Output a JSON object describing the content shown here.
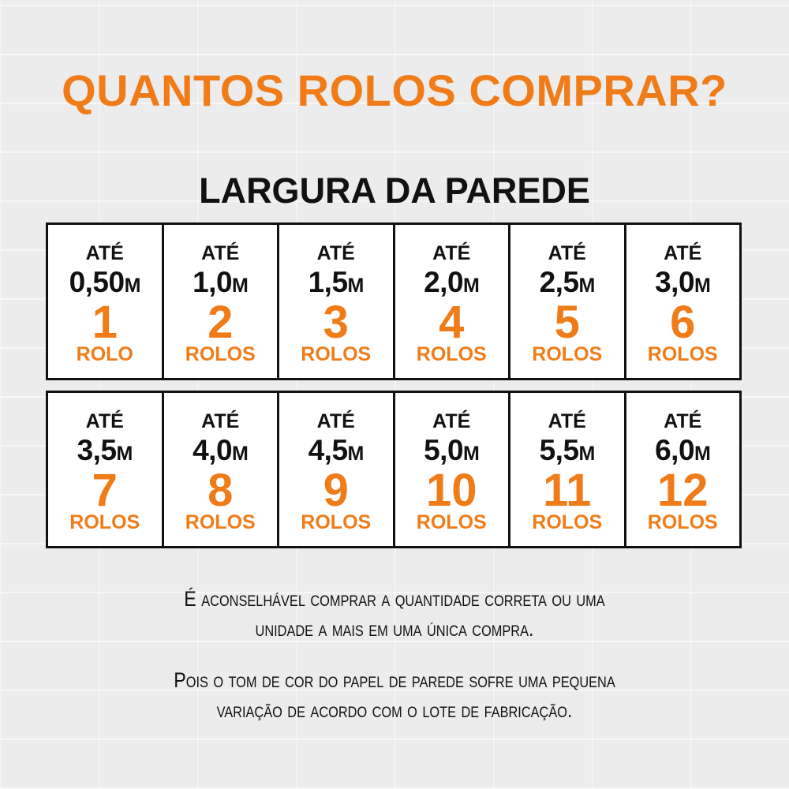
{
  "title": "QUANTOS ROLOS COMPRAR?",
  "subtitle": "LARGURA DA PAREDE",
  "colors": {
    "accent": "#f07c19",
    "text": "#111111",
    "background": "#ececec"
  },
  "rows": [
    [
      {
        "prefix": "ATÉ",
        "width": "0,50",
        "unit": "M",
        "rolls": "1",
        "label": "ROLO"
      },
      {
        "prefix": "ATÉ",
        "width": "1,0",
        "unit": "M",
        "rolls": "2",
        "label": "ROLOS"
      },
      {
        "prefix": "ATÉ",
        "width": "1,5",
        "unit": "M",
        "rolls": "3",
        "label": "ROLOS"
      },
      {
        "prefix": "ATÉ",
        "width": "2,0",
        "unit": "M",
        "rolls": "4",
        "label": "ROLOS"
      },
      {
        "prefix": "ATÉ",
        "width": "2,5",
        "unit": "M",
        "rolls": "5",
        "label": "ROLOS"
      },
      {
        "prefix": "ATÉ",
        "width": "3,0",
        "unit": "M",
        "rolls": "6",
        "label": "ROLOS"
      }
    ],
    [
      {
        "prefix": "ATÉ",
        "width": "3,5",
        "unit": "M",
        "rolls": "7",
        "label": "ROLOS"
      },
      {
        "prefix": "ATÉ",
        "width": "4,0",
        "unit": "M",
        "rolls": "8",
        "label": "ROLOS"
      },
      {
        "prefix": "ATÉ",
        "width": "4,5",
        "unit": "M",
        "rolls": "9",
        "label": "ROLOS"
      },
      {
        "prefix": "ATÉ",
        "width": "5,0",
        "unit": "M",
        "rolls": "10",
        "label": "ROLOS"
      },
      {
        "prefix": "ATÉ",
        "width": "5,5",
        "unit": "M",
        "rolls": "11",
        "label": "ROLOS"
      },
      {
        "prefix": "ATÉ",
        "width": "6,0",
        "unit": "M",
        "rolls": "12",
        "label": "ROLOS"
      }
    ]
  ],
  "notes": {
    "note1_line1": "É aconselhável comprar a quantidade correta ou uma",
    "note1_line2": "unidade a mais em uma única compra.",
    "note2_line1": "Pois o tom de cor do papel de parede sofre uma pequena",
    "note2_line2": "variação de acordo com o lote de fabricação."
  }
}
